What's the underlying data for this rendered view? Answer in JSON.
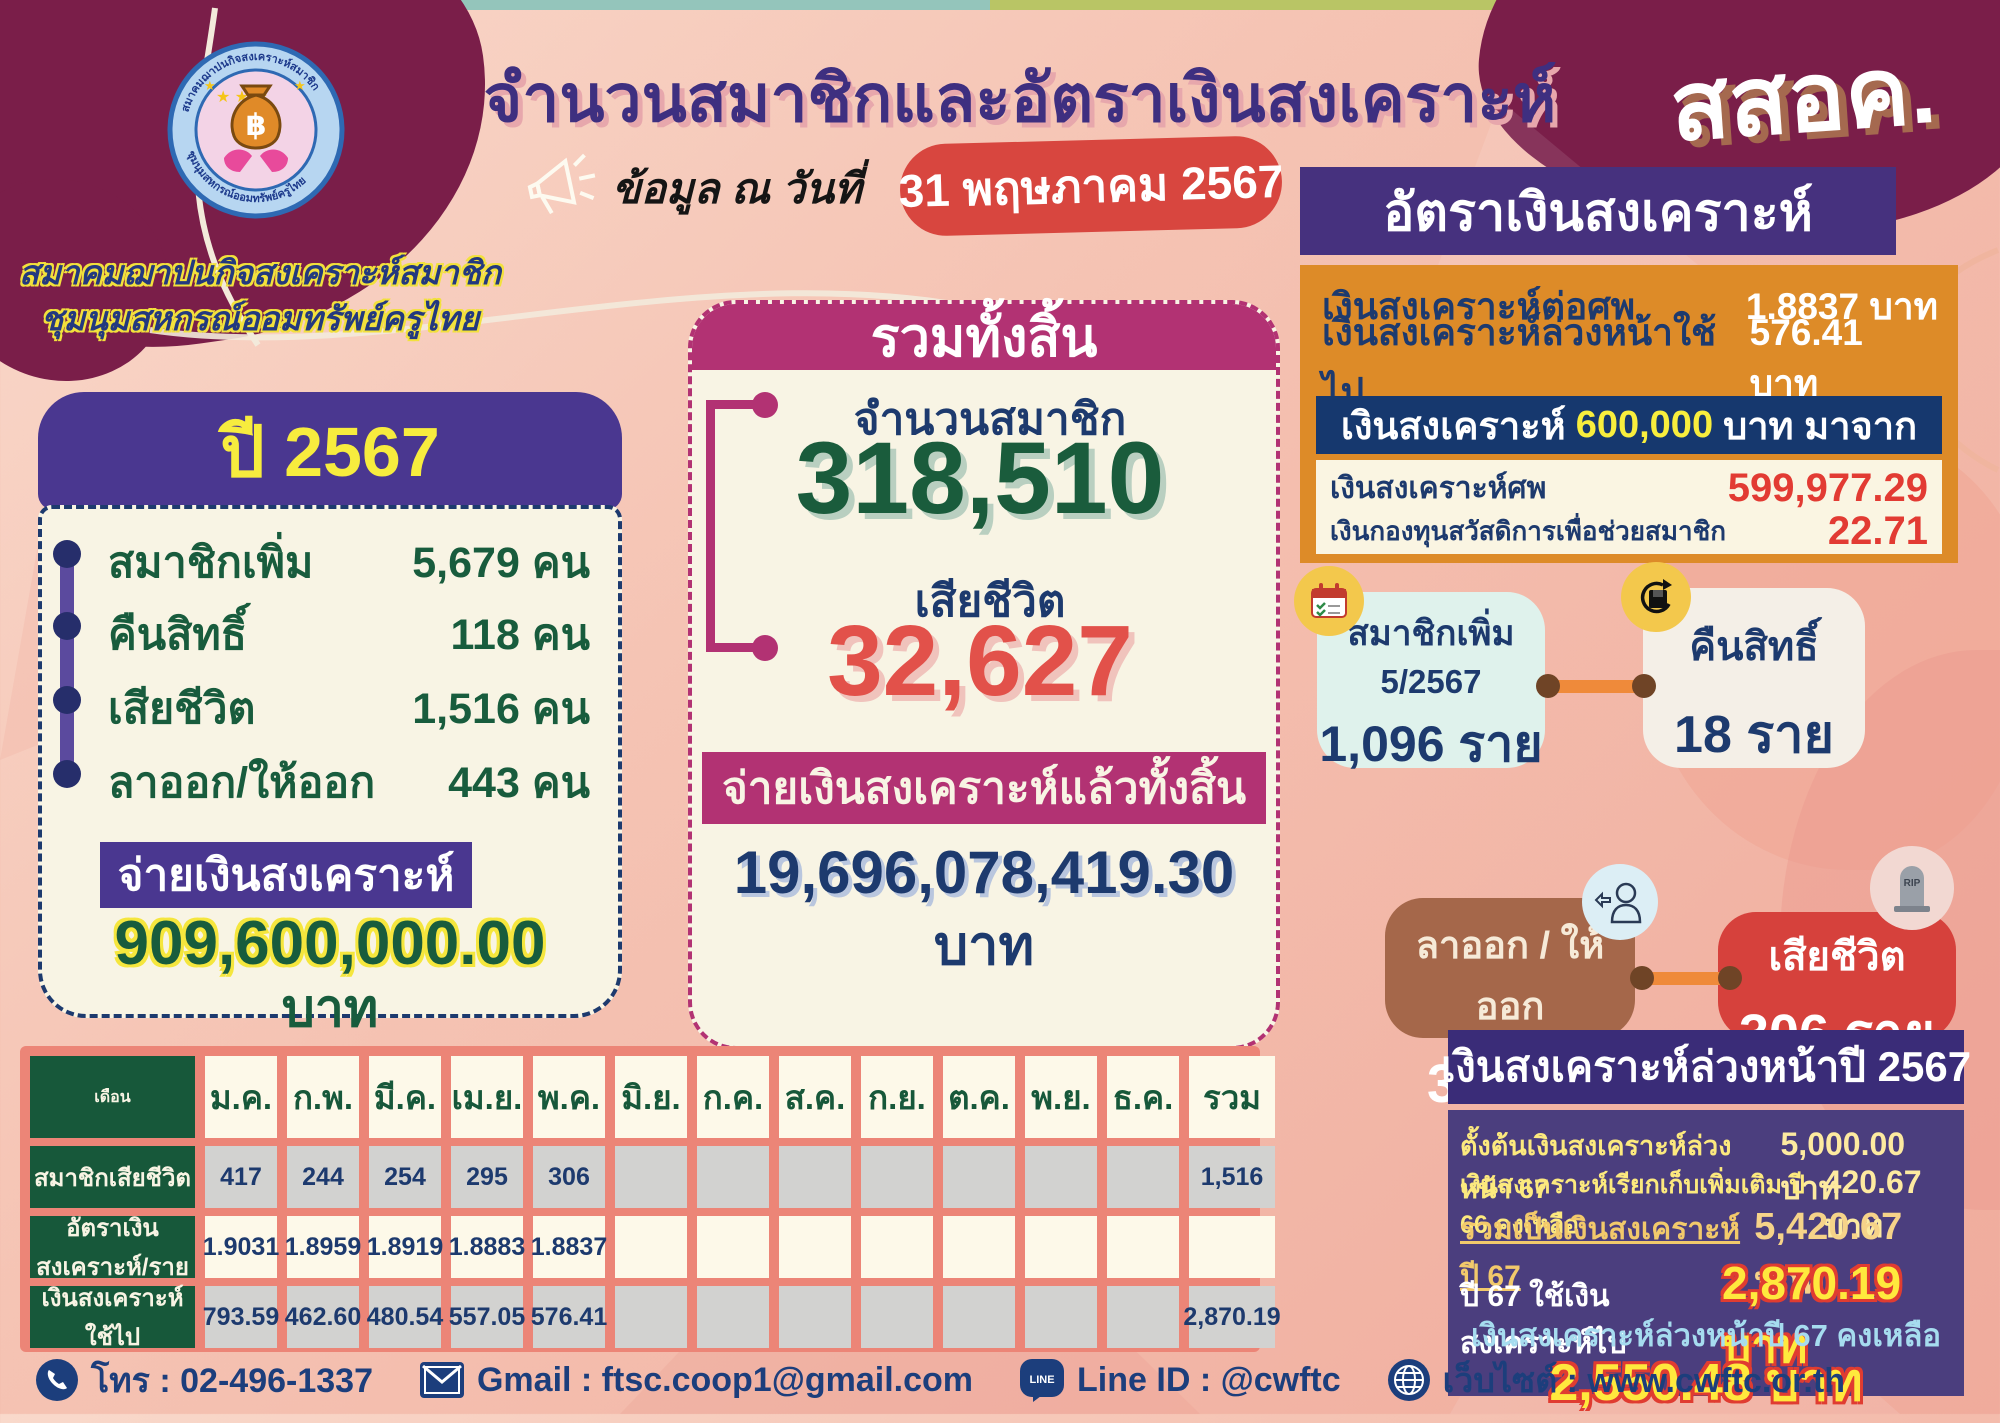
{
  "header": {
    "title": "จำนวนสมาชิกและอัตราเงินสงเคราะห์",
    "brand_abbr": "สสอค.",
    "org_line1": "สมาคมฌาปนกิจสงเคราะห์สมาชิก",
    "org_line2": "ชุมนุมสหกรณ์ออมทรัพย์ครูไทย",
    "asof_label": "ข้อมูล ณ วันที่",
    "asof_date": "31 พฤษภาคม 2567",
    "logo_baht": "฿"
  },
  "rates_panel": {
    "title": "อัตราเงินสงเคราะห์",
    "rows": [
      {
        "label": "เงินสงเคราะห์ต่อศพ",
        "value": "1.8837",
        "unit": "บาท"
      },
      {
        "label": "เงินสงเคราะห์ล่วงหน้าใช้ไป",
        "value": "576.41",
        "unit": "บาท"
      }
    ],
    "banner_prefix": "เงินสงเคราะห์",
    "banner_amount": "600,000",
    "banner_suffix": "บาท มาจาก",
    "breakdown": [
      {
        "label": "เงินสงเคราะห์ศพ",
        "value": "599,977.29"
      },
      {
        "label": "เงินกองทุนสวัสดิการเพื่อช่วยสมาชิก",
        "value": "22.71"
      }
    ]
  },
  "year_panel": {
    "title": "ปี 2567",
    "items": [
      {
        "label": "สมาชิกเพิ่ม",
        "value": "5,679",
        "unit": "คน"
      },
      {
        "label": "คืนสิทธิ์",
        "value": "118",
        "unit": "คน"
      },
      {
        "label": "เสียชีวิต",
        "value": "1,516",
        "unit": "คน"
      },
      {
        "label": "ลาออก/ให้ออก",
        "value": "443",
        "unit": "คน"
      }
    ],
    "banner": "จ่ายเงินสงเคราะห์",
    "total": "909,600,000.00",
    "total_unit": "บาท"
  },
  "total_panel": {
    "title": "รวมทั้งสิ้น",
    "members_label": "จำนวนสมาชิก",
    "members_value": "318,510",
    "deaths_label": "เสียชีวิต",
    "deaths_value": "32,627",
    "banner": "จ่ายเงินสงเคราะห์แล้วทั้งสิ้น",
    "paid_value": "19,696,078,419.30",
    "paid_unit": "บาท"
  },
  "cards": {
    "added": {
      "title": "สมาชิกเพิ่ม",
      "subtitle": "5/2567",
      "value": "1,096 ราย"
    },
    "restored": {
      "title": "คืนสิทธิ์",
      "value": "18 ราย"
    },
    "resigned": {
      "title": "ลาออก / ให้ออก",
      "value": "30 ราย"
    },
    "deceased": {
      "title": "เสียชีวิต",
      "value": "306 ราย",
      "rip": "RIP"
    }
  },
  "advance_panel": {
    "title": "เงินสงเคราะห์ล่วงหน้าปี 2567",
    "rows": [
      {
        "label": "ตั้งต้นเงินสงเคราะห์ล่วงหน้า 67",
        "value": "5,000.00 บาท"
      },
      {
        "label": "เงินสงเคราะห์เรียกเก็บเพิ่มเติม ปี 66 คงเหลือ",
        "value": "420.67 บาท"
      },
      {
        "label": "รวมเป็นเงินสงเคราะห์ปี 67",
        "value": "5,420.67 บาท"
      }
    ],
    "used_label": "ปี 67 ใช้เงินสงเคราะห์ไป",
    "used_value": "2,870.19 บาท",
    "remain_label": "เงินสงเคราะห์ล่วงหน้าปี 67 คงเหลือ",
    "remain_value": "2,550.48 บาท"
  },
  "table": {
    "header": [
      "เดือน",
      "ม.ค.",
      "ก.พ.",
      "มี.ค.",
      "เม.ย.",
      "พ.ค.",
      "มิ.ย.",
      "ก.ค.",
      "ส.ค.",
      "ก.ย.",
      "ต.ค.",
      "พ.ย.",
      "ธ.ค.",
      "รวม"
    ],
    "rows": [
      {
        "label": "สมาชิกเสียชีวิต",
        "shade": "grey",
        "values": [
          "417",
          "244",
          "254",
          "295",
          "306",
          "",
          "",
          "",
          "",
          "",
          "",
          "",
          "1,516"
        ]
      },
      {
        "label": "อัตราเงินสงเคราะห์/ราย",
        "shade": "cream",
        "values": [
          "1.9031",
          "1.8959",
          "1.8919",
          "1.8883",
          "1.8837",
          "",
          "",
          "",
          "",
          "",
          "",
          "",
          ""
        ]
      },
      {
        "label": "เงินสงเคราะห์ใช้ไป",
        "shade": "grey",
        "values": [
          "793.59",
          "462.60",
          "480.54",
          "557.05",
          "576.41",
          "",
          "",
          "",
          "",
          "",
          "",
          "",
          "2,870.19"
        ]
      }
    ]
  },
  "footer": {
    "phone": "โทร : 02-496-1337",
    "email": "Gmail : ftsc.coop1@gmail.com",
    "line": "Line ID : @cwftc",
    "line_badge": "LINE",
    "website": "เว็บไซต์ : www.cwftc.or.th"
  },
  "colors": {
    "maroon": "#7a1e49",
    "purple": "#4a3790",
    "magenta": "#b23273",
    "orange": "#dd8b28",
    "navy": "#1d3a6e",
    "green": "#185c3d",
    "red": "#e2514a",
    "yellow": "#f7ec3e",
    "cream": "#f8f4e4"
  }
}
